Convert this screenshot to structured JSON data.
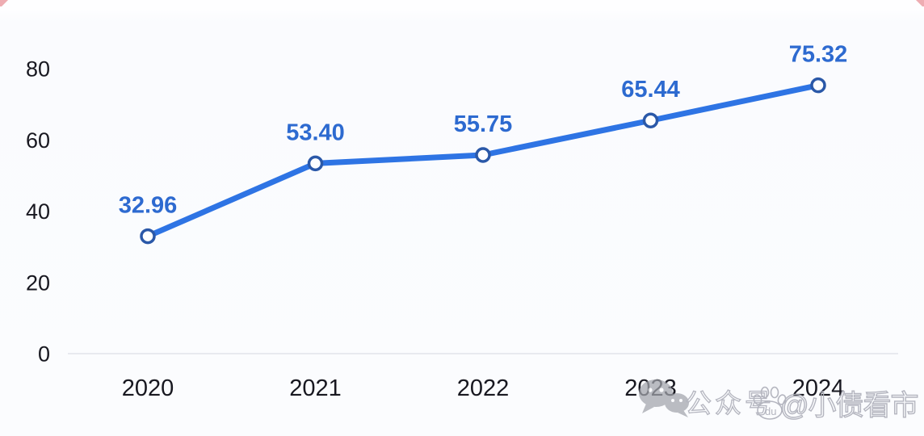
{
  "chart_data": {
    "type": "line",
    "categories": [
      "2020",
      "2021",
      "2022",
      "2023",
      "2024"
    ],
    "values": [
      32.96,
      53.4,
      55.75,
      65.44,
      75.32
    ],
    "point_labels": [
      "32.96",
      "53.40",
      "55.75",
      "65.44",
      "75.32"
    ],
    "title": "",
    "xlabel": "",
    "ylabel": "",
    "ylim": [
      0,
      80
    ],
    "yticks": [
      0,
      20,
      40,
      60,
      80
    ],
    "grid": false,
    "legend": "none",
    "line_color": "#2e74e4",
    "marker_style": "open-circle",
    "marker_fill": "#fdfeff",
    "marker_stroke": "#2a58a8",
    "point_label_color": "#2d6ad0",
    "axis_text_color": "#181820",
    "baseline_color": "#e8eaef"
  },
  "watermark": {
    "prefix": "公众号",
    "suffix": "@小债看市",
    "paw_text": "du",
    "color": "#aeb0ba",
    "wechat_icon_color": "#a3a5ad"
  },
  "artifacts": {
    "corner_mark_color": "#e06a72"
  }
}
